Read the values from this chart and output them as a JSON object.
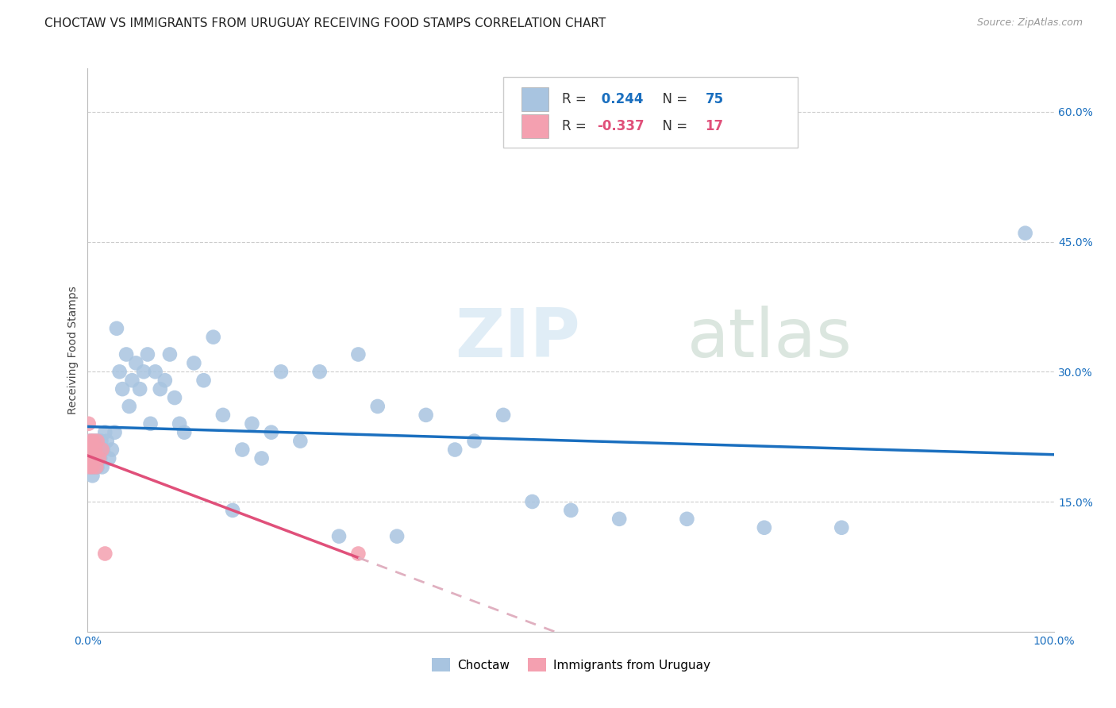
{
  "title": "CHOCTAW VS IMMIGRANTS FROM URUGUAY RECEIVING FOOD STAMPS CORRELATION CHART",
  "source": "Source: ZipAtlas.com",
  "ylabel": "Receiving Food Stamps",
  "xlim": [
    0.0,
    1.0
  ],
  "ylim": [
    0.0,
    0.65
  ],
  "xticks": [
    0.0,
    0.2,
    0.4,
    0.6,
    0.8,
    1.0
  ],
  "xticklabels": [
    "0.0%",
    "",
    "",
    "",
    "",
    "100.0%"
  ],
  "ytick_positions": [
    0.15,
    0.3,
    0.45,
    0.6
  ],
  "ytick_labels": [
    "15.0%",
    "30.0%",
    "45.0%",
    "60.0%"
  ],
  "choctaw_color": "#a8c4e0",
  "uruguay_color": "#f4a0b0",
  "trendline_choctaw_color": "#1a6fbf",
  "trendline_uruguay_color": "#e0507a",
  "trendline_uruguay_dashed_color": "#e0b0c0",
  "R_choctaw": 0.244,
  "N_choctaw": 75,
  "R_uruguay": -0.337,
  "N_uruguay": 17,
  "watermark_zip": "ZIP",
  "watermark_atlas": "atlas",
  "legend_label_choctaw": "Choctaw",
  "legend_label_uruguay": "Immigrants from Uruguay",
  "choctaw_x": [
    0.001,
    0.002,
    0.002,
    0.003,
    0.003,
    0.004,
    0.004,
    0.005,
    0.005,
    0.006,
    0.006,
    0.007,
    0.007,
    0.008,
    0.008,
    0.009,
    0.009,
    0.01,
    0.01,
    0.011,
    0.012,
    0.013,
    0.014,
    0.015,
    0.016,
    0.018,
    0.02,
    0.022,
    0.025,
    0.028,
    0.03,
    0.033,
    0.036,
    0.04,
    0.043,
    0.046,
    0.05,
    0.054,
    0.058,
    0.062,
    0.065,
    0.07,
    0.075,
    0.08,
    0.085,
    0.09,
    0.095,
    0.1,
    0.11,
    0.12,
    0.13,
    0.14,
    0.15,
    0.16,
    0.17,
    0.18,
    0.19,
    0.2,
    0.22,
    0.24,
    0.26,
    0.28,
    0.3,
    0.32,
    0.35,
    0.38,
    0.4,
    0.43,
    0.46,
    0.5,
    0.55,
    0.62,
    0.7,
    0.78,
    0.97
  ],
  "choctaw_y": [
    0.21,
    0.2,
    0.22,
    0.19,
    0.21,
    0.2,
    0.22,
    0.18,
    0.21,
    0.19,
    0.22,
    0.2,
    0.21,
    0.19,
    0.22,
    0.2,
    0.21,
    0.19,
    0.22,
    0.2,
    0.21,
    0.2,
    0.22,
    0.19,
    0.21,
    0.23,
    0.22,
    0.2,
    0.21,
    0.23,
    0.35,
    0.3,
    0.28,
    0.32,
    0.26,
    0.29,
    0.31,
    0.28,
    0.3,
    0.32,
    0.24,
    0.3,
    0.28,
    0.29,
    0.32,
    0.27,
    0.24,
    0.23,
    0.31,
    0.29,
    0.34,
    0.25,
    0.14,
    0.21,
    0.24,
    0.2,
    0.23,
    0.3,
    0.22,
    0.3,
    0.11,
    0.32,
    0.26,
    0.11,
    0.25,
    0.21,
    0.22,
    0.25,
    0.15,
    0.14,
    0.13,
    0.13,
    0.12,
    0.12,
    0.46
  ],
  "uruguay_x": [
    0.001,
    0.001,
    0.002,
    0.002,
    0.003,
    0.003,
    0.004,
    0.005,
    0.006,
    0.007,
    0.008,
    0.009,
    0.01,
    0.012,
    0.015,
    0.018,
    0.28
  ],
  "uruguay_y": [
    0.24,
    0.21,
    0.2,
    0.19,
    0.22,
    0.2,
    0.21,
    0.19,
    0.22,
    0.2,
    0.21,
    0.19,
    0.22,
    0.2,
    0.21,
    0.09,
    0.09
  ],
  "grid_color": "#cccccc",
  "background_color": "#ffffff",
  "title_fontsize": 11,
  "axis_label_fontsize": 10,
  "tick_fontsize": 10,
  "source_fontsize": 9
}
